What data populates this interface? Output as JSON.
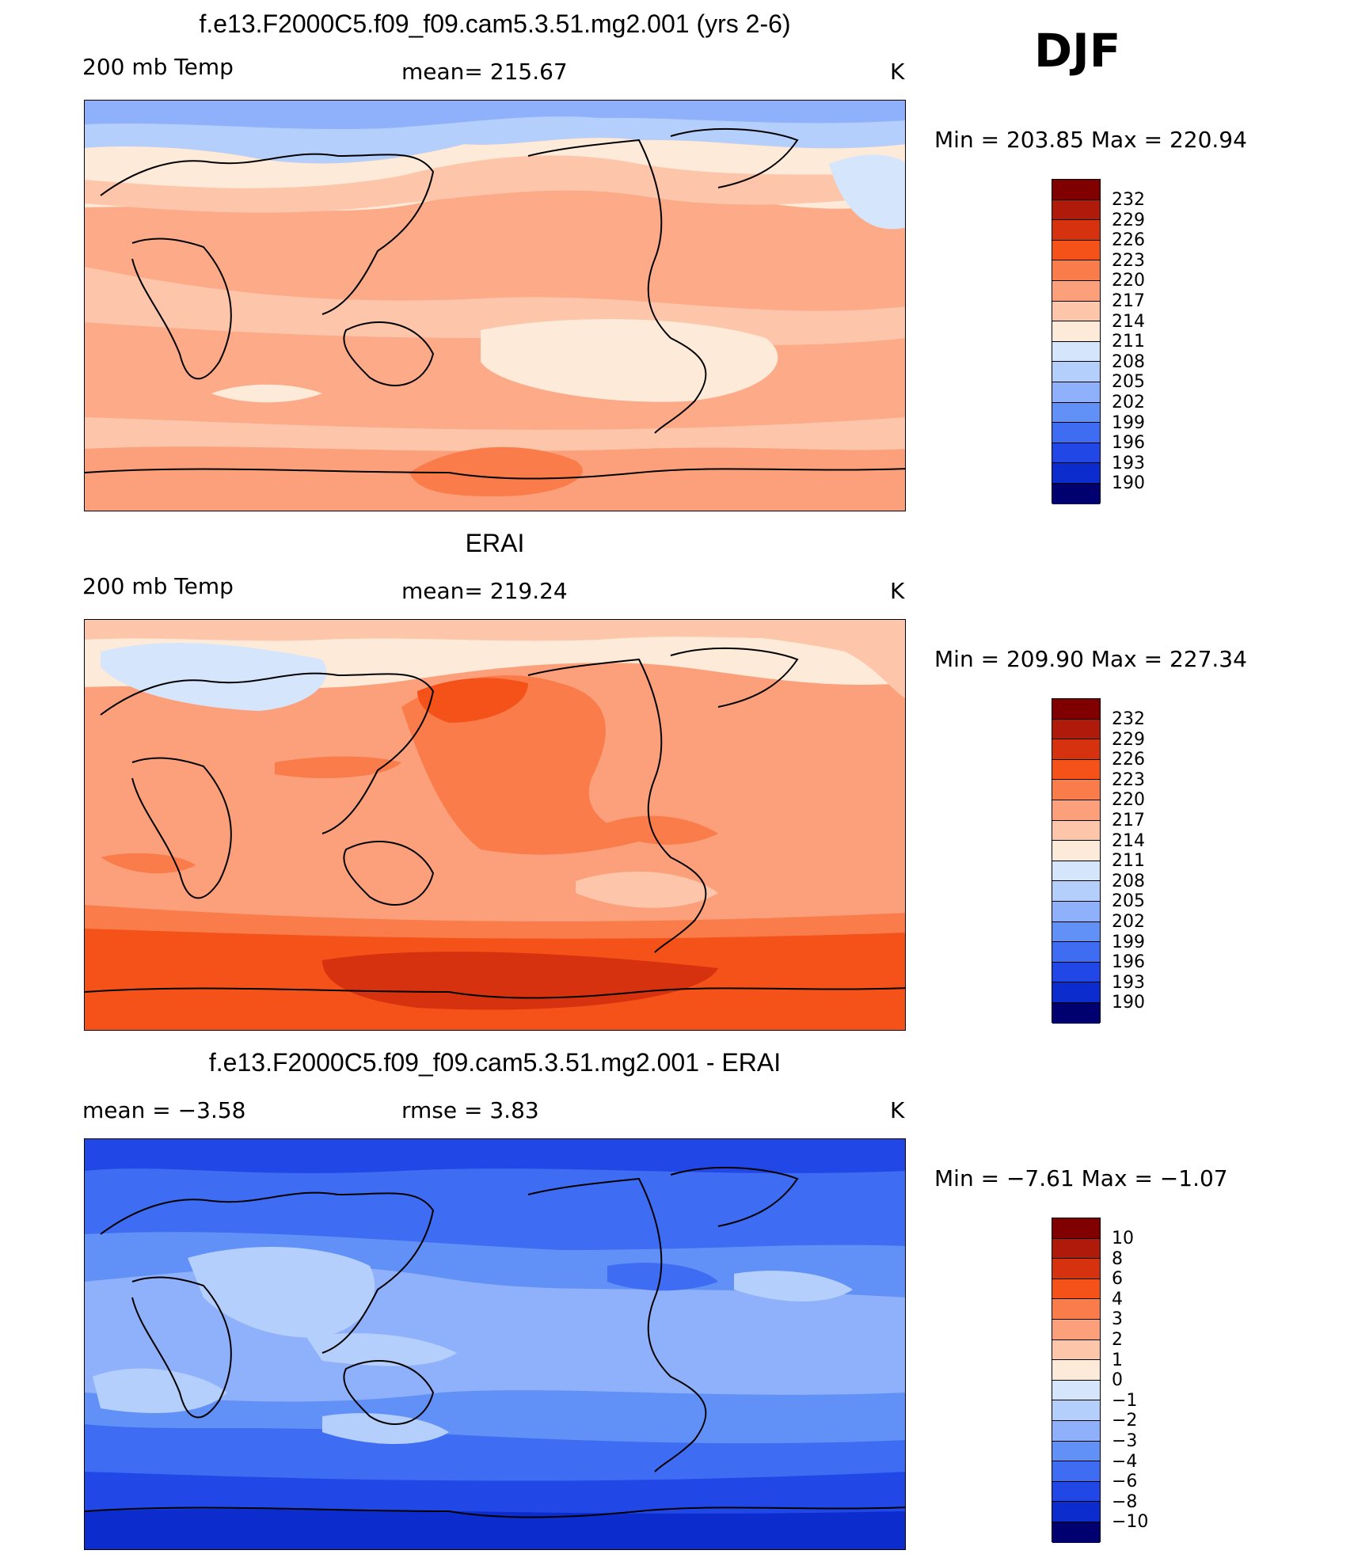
{
  "season": "DJF",
  "colors": [
    "#800000",
    "#b01a0a",
    "#d6320f",
    "#f5521a",
    "#fa7c4a",
    "#fca07c",
    "#fdc6aa",
    "#feead8",
    "#d5e6fc",
    "#b4cffc",
    "#8fb0fa",
    "#6190f7",
    "#3e6cf2",
    "#2148e6",
    "#0c2ccd",
    "#001898",
    "#000070"
  ],
  "panels": [
    {
      "title": "f.e13.F2000C5.f09_f09.cam5.3.51.mg2.001 (yrs 2-6)",
      "left_label": "200 mb Temp",
      "center_label": "mean= 215.67",
      "right_label": "K",
      "minmax": "Min  =  203.85  Max  =  220.94",
      "ticks": [
        "232",
        "229",
        "226",
        "223",
        "220",
        "217",
        "214",
        "211",
        "208",
        "205",
        "202",
        "199",
        "196",
        "193",
        "190"
      ]
    },
    {
      "title": "ERAI",
      "left_label": "200 mb Temp",
      "center_label": "mean= 219.24",
      "right_label": "K",
      "minmax": "Min  =  209.90  Max  =  227.34",
      "ticks": [
        "232",
        "229",
        "226",
        "223",
        "220",
        "217",
        "214",
        "211",
        "208",
        "205",
        "202",
        "199",
        "196",
        "193",
        "190"
      ]
    },
    {
      "title": "f.e13.F2000C5.f09_f09.cam5.3.51.mg2.001 - ERAI",
      "left_label": "mean  =     −3.58",
      "center_label": "rmse  =      3.83",
      "right_label": "K",
      "minmax": "Min  =    −7.61  Max  =    −1.07",
      "ticks": [
        "10",
        "8",
        "6",
        "4",
        "3",
        "2",
        "1",
        "0",
        "−1",
        "−2",
        "−3",
        "−4",
        "−6",
        "−8",
        "−10"
      ]
    }
  ]
}
